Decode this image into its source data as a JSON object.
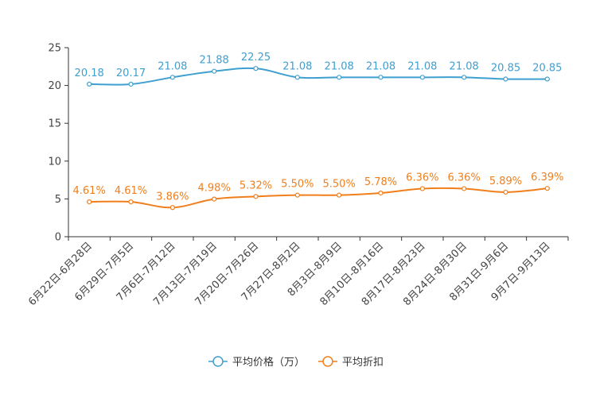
{
  "chart_data": {
    "type": "line",
    "categories": [
      "6月22日-6月28日",
      "6月29日-7月5日",
      "7月6日-7月12日",
      "7月13日-7月19日",
      "7月20日-7月26日",
      "7月27日-8月2日",
      "8月3日-8月9日",
      "8月10日-8月16日",
      "8月17日-8月23日",
      "8月24日-8月30日",
      "8月31日-9月6日",
      "9月7日-9月13日"
    ],
    "ylim": [
      0,
      25
    ],
    "yticks": [
      0,
      5,
      10,
      15,
      20,
      25
    ],
    "series": [
      {
        "name": "平均价格（万）",
        "color": "#3f9fcf",
        "values": [
          20.18,
          20.17,
          21.08,
          21.88,
          22.25,
          21.08,
          21.08,
          21.08,
          21.08,
          21.08,
          20.85,
          20.85
        ],
        "labels": [
          "20.18",
          "20.17",
          "21.08",
          "21.88",
          "22.25",
          "21.08",
          "21.08",
          "21.08",
          "21.08",
          "21.08",
          "20.85",
          "20.85"
        ]
      },
      {
        "name": "平均折扣",
        "color": "#f07f1b",
        "values": [
          4.61,
          4.61,
          3.86,
          4.98,
          5.32,
          5.5,
          5.5,
          5.78,
          6.36,
          6.36,
          5.89,
          6.39
        ],
        "labels": [
          "4.61%",
          "4.61%",
          "3.86%",
          "4.98%",
          "5.32%",
          "5.50%",
          "5.50%",
          "5.78%",
          "6.36%",
          "6.36%",
          "5.89%",
          "6.39%"
        ]
      }
    ],
    "legend": {
      "position": "bottom-center"
    }
  }
}
